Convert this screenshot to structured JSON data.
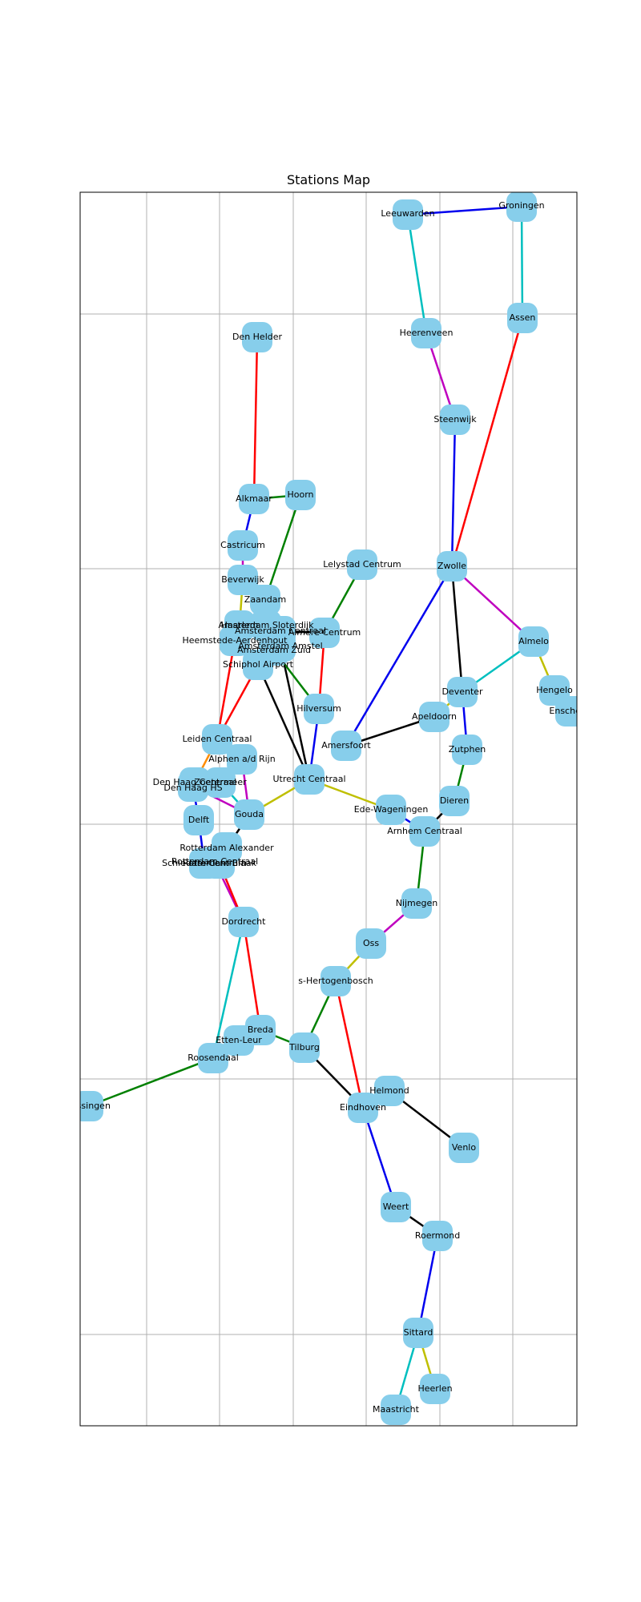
{
  "title": "Stations Map",
  "colors": {
    "node": "#87CEEB",
    "grid": "#b0b0b0"
  },
  "stations": [
    {
      "id": "Groningen",
      "label": "Groningen"
    },
    {
      "id": "Leeuwarden",
      "label": "Leeuwarden"
    },
    {
      "id": "Assen",
      "label": "Assen"
    },
    {
      "id": "Heerenveen",
      "label": "Heerenveen"
    },
    {
      "id": "Den Helder",
      "label": "Den Helder"
    },
    {
      "id": "Steenwijk",
      "label": "Steenwijk"
    },
    {
      "id": "Alkmaar",
      "label": "Alkmaar"
    },
    {
      "id": "Hoorn",
      "label": "Hoorn"
    },
    {
      "id": "Castricum",
      "label": "Castricum"
    },
    {
      "id": "Lelystad Centrum",
      "label": "Lelystad Centrum"
    },
    {
      "id": "Zwolle",
      "label": "Zwolle"
    },
    {
      "id": "Beverwijk",
      "label": "Beverwijk"
    },
    {
      "id": "Zaandam",
      "label": "Zaandam"
    },
    {
      "id": "Haarlem",
      "label": "Haarlem"
    },
    {
      "id": "Amsterdam Sloterdijk",
      "label": "Amsterdam Sloterdijk"
    },
    {
      "id": "Amsterdam Centraal",
      "label": "Amsterdam Centraal"
    },
    {
      "id": "Almere Centrum",
      "label": "Almere Centrum"
    },
    {
      "id": "Heemstede-Aerdenhout",
      "label": "Heemstede-Aerdenhout"
    },
    {
      "id": "Amsterdam Amstel",
      "label": "Amsterdam Amstel"
    },
    {
      "id": "Amsterdam Zuid",
      "label": "Amsterdam Zuid"
    },
    {
      "id": "Almelo",
      "label": "Almelo"
    },
    {
      "id": "Schiphol Airport",
      "label": "Schiphol Airport"
    },
    {
      "id": "Deventer",
      "label": "Deventer"
    },
    {
      "id": "Hengelo",
      "label": "Hengelo"
    },
    {
      "id": "Enschede",
      "label": "Enschede"
    },
    {
      "id": "Hilversum",
      "label": "Hilversum"
    },
    {
      "id": "Apeldoorn",
      "label": "Apeldoorn"
    },
    {
      "id": "Leiden Centraal",
      "label": "Leiden Centraal"
    },
    {
      "id": "Amersfoort",
      "label": "Amersfoort"
    },
    {
      "id": "Zutphen",
      "label": "Zutphen"
    },
    {
      "id": "Alphen a/d Rijn",
      "label": "Alphen a/d Rijn"
    },
    {
      "id": "Utrecht Centraal",
      "label": "Utrecht Centraal"
    },
    {
      "id": "Den Haag Centraal",
      "label": "Den Haag Centraal"
    },
    {
      "id": "Den Haag HS",
      "label": "Den Haag HS"
    },
    {
      "id": "Zoetermeer",
      "label": "Zoetermeer"
    },
    {
      "id": "Dieren",
      "label": "Dieren"
    },
    {
      "id": "Ede-Wageningen",
      "label": "Ede-Wageningen"
    },
    {
      "id": "Gouda",
      "label": "Gouda"
    },
    {
      "id": "Delft",
      "label": "Delft"
    },
    {
      "id": "Arnhem Centraal",
      "label": "Arnhem Centraal"
    },
    {
      "id": "Rotterdam Alexander",
      "label": "Rotterdam Alexander"
    },
    {
      "id": "Rotterdam Centraal",
      "label": "Rotterdam Centraal"
    },
    {
      "id": "Schiedam Centrum",
      "label": "Schiedam Centrum"
    },
    {
      "id": "Rotterdam Blaak",
      "label": "Rotterdam Blaak"
    },
    {
      "id": "Nijmegen",
      "label": "Nijmegen"
    },
    {
      "id": "Dordrecht",
      "label": "Dordrecht"
    },
    {
      "id": "Oss",
      "label": "Oss"
    },
    {
      "id": "s-Hertogenbosch",
      "label": "s-Hertogenbosch"
    },
    {
      "id": "Breda",
      "label": "Breda"
    },
    {
      "id": "Etten-Leur",
      "label": "Etten-Leur"
    },
    {
      "id": "Tilburg",
      "label": "Tilburg"
    },
    {
      "id": "Roosendaal",
      "label": "Roosendaal"
    },
    {
      "id": "Helmond",
      "label": "Helmond"
    },
    {
      "id": "Vlissingen",
      "label": "Vlissingen"
    },
    {
      "id": "Eindhoven",
      "label": "Eindhoven"
    },
    {
      "id": "Venlo",
      "label": "Venlo"
    },
    {
      "id": "Weert",
      "label": "Weert"
    },
    {
      "id": "Roermond",
      "label": "Roermond"
    },
    {
      "id": "Sittard",
      "label": "Sittard"
    },
    {
      "id": "Heerlen",
      "label": "Heerlen"
    },
    {
      "id": "Maastricht",
      "label": "Maastricht"
    }
  ],
  "connections": [
    {
      "from": "Leeuwarden",
      "to": "Groningen",
      "color": "#0000ee"
    },
    {
      "from": "Groningen",
      "to": "Assen",
      "color": "#00bfbf"
    },
    {
      "from": "Leeuwarden",
      "to": "Heerenveen",
      "color": "#00bfbf"
    },
    {
      "from": "Heerenveen",
      "to": "Steenwijk",
      "color": "#bf00bf"
    },
    {
      "from": "Steenwijk",
      "to": "Zwolle",
      "color": "#0000ee"
    },
    {
      "from": "Assen",
      "to": "Zwolle",
      "color": "#ff0000"
    },
    {
      "from": "Den Helder",
      "to": "Alkmaar",
      "color": "#ff0000"
    },
    {
      "from": "Alkmaar",
      "to": "Hoorn",
      "color": "#008000"
    },
    {
      "from": "Alkmaar",
      "to": "Castricum",
      "color": "#0000ee"
    },
    {
      "from": "Castricum",
      "to": "Beverwijk",
      "color": "#bf00bf"
    },
    {
      "from": "Beverwijk",
      "to": "Haarlem",
      "color": "#bfbf00"
    },
    {
      "from": "Hoorn",
      "to": "Zaandam",
      "color": "#008000"
    },
    {
      "from": "Zaandam",
      "to": "Amsterdam Sloterdijk",
      "color": "#0000ee"
    },
    {
      "from": "Haarlem",
      "to": "Amsterdam Sloterdijk",
      "color": "#ff0000"
    },
    {
      "from": "Amsterdam Sloterdijk",
      "to": "Amsterdam Centraal",
      "color": "#000000"
    },
    {
      "from": "Amsterdam Centraal",
      "to": "Almere Centrum",
      "color": "#000000"
    },
    {
      "from": "Lelystad Centrum",
      "to": "Almere Centrum",
      "color": "#008000"
    },
    {
      "from": "Almere Centrum",
      "to": "Hilversum",
      "color": "#ff0000"
    },
    {
      "from": "Amsterdam Centraal",
      "to": "Amsterdam Amstel",
      "color": "#000000"
    },
    {
      "from": "Amsterdam Amstel",
      "to": "Utrecht Centraal",
      "color": "#000000"
    },
    {
      "from": "Amsterdam Zuid",
      "to": "Hilversum",
      "color": "#008000"
    },
    {
      "from": "Schiphol Airport",
      "to": "Utrecht Centraal",
      "color": "#000000"
    },
    {
      "from": "Schiphol Airport",
      "to": "Leiden Centraal",
      "color": "#ff0000"
    },
    {
      "from": "Heemstede-Aerdenhout",
      "to": "Leiden Centraal",
      "color": "#ff0000"
    },
    {
      "from": "Hilversum",
      "to": "Utrecht Centraal",
      "color": "#0000ee"
    },
    {
      "from": "Zwolle",
      "to": "Almelo",
      "color": "#bf00bf"
    },
    {
      "from": "Zwolle",
      "to": "Deventer",
      "color": "#000000"
    },
    {
      "from": "Zwolle",
      "to": "Amersfoort",
      "color": "#0000ee"
    },
    {
      "from": "Almelo",
      "to": "Deventer",
      "color": "#00bfbf"
    },
    {
      "from": "Almelo",
      "to": "Hengelo",
      "color": "#bfbf00"
    },
    {
      "from": "Hengelo",
      "to": "Enschede",
      "color": "#bfbf00"
    },
    {
      "from": "Deventer",
      "to": "Apeldoorn",
      "color": "#bfbf00"
    },
    {
      "from": "Deventer",
      "to": "Zutphen",
      "color": "#0000ee"
    },
    {
      "from": "Zutphen",
      "to": "Dieren",
      "color": "#008000"
    },
    {
      "from": "Apeldoorn",
      "to": "Amersfoort",
      "color": "#000000"
    },
    {
      "from": "Dieren",
      "to": "Arnhem Centraal",
      "color": "#000000"
    },
    {
      "from": "Utrecht Centraal",
      "to": "Ede-Wageningen",
      "color": "#bfbf00"
    },
    {
      "from": "Ede-Wageningen",
      "to": "Arnhem Centraal",
      "color": "#0000ee"
    },
    {
      "from": "Arnhem Centraal",
      "to": "Nijmegen",
      "color": "#008000"
    },
    {
      "from": "Utrecht Centraal",
      "to": "Gouda",
      "color": "#bfbf00"
    },
    {
      "from": "Leiden Centraal",
      "to": "Den Haag Centraal",
      "color": "#ff8c00"
    },
    {
      "from": "Alphen a/d Rijn",
      "to": "Gouda",
      "color": "#bf00bf"
    },
    {
      "from": "Zoetermeer",
      "to": "Gouda",
      "color": "#00bfbf"
    },
    {
      "from": "Den Haag HS",
      "to": "Gouda",
      "color": "#bf00bf"
    },
    {
      "from": "Den Haag HS",
      "to": "Delft",
      "color": "#0000ee"
    },
    {
      "from": "Delft",
      "to": "Schiedam Centrum",
      "color": "#0000ee"
    },
    {
      "from": "Gouda",
      "to": "Rotterdam Alexander",
      "color": "#000000"
    },
    {
      "from": "Rotterdam Alexander",
      "to": "Rotterdam Centraal",
      "color": "#000000"
    },
    {
      "from": "Rotterdam Centraal",
      "to": "Dordrecht",
      "color": "#bf00bf"
    },
    {
      "from": "Rotterdam Blaak",
      "to": "Dordrecht",
      "color": "#ff0000"
    },
    {
      "from": "Dordrecht",
      "to": "Breda",
      "color": "#ff0000"
    },
    {
      "from": "Dordrecht",
      "to": "Roosendaal",
      "color": "#00bfbf"
    },
    {
      "from": "Breda",
      "to": "Tilburg",
      "color": "#008000"
    },
    {
      "from": "Etten-Leur",
      "to": "Roosendaal",
      "color": "#008000"
    },
    {
      "from": "Roosendaal",
      "to": "Vlissingen",
      "color": "#008000"
    },
    {
      "from": "Nijmegen",
      "to": "Oss",
      "color": "#bf00bf"
    },
    {
      "from": "Oss",
      "to": "s-Hertogenbosch",
      "color": "#bfbf00"
    },
    {
      "from": "s-Hertogenbosch",
      "to": "Tilburg",
      "color": "#008000"
    },
    {
      "from": "s-Hertogenbosch",
      "to": "Eindhoven",
      "color": "#ff0000"
    },
    {
      "from": "Tilburg",
      "to": "Eindhoven",
      "color": "#000000"
    },
    {
      "from": "Eindhoven",
      "to": "Helmond",
      "color": "#000000"
    },
    {
      "from": "Helmond",
      "to": "Venlo",
      "color": "#000000"
    },
    {
      "from": "Eindhoven",
      "to": "Weert",
      "color": "#0000ee"
    },
    {
      "from": "Weert",
      "to": "Roermond",
      "color": "#000000"
    },
    {
      "from": "Roermond",
      "to": "Sittard",
      "color": "#0000ee"
    },
    {
      "from": "Sittard",
      "to": "Heerlen",
      "color": "#bfbf00"
    },
    {
      "from": "Sittard",
      "to": "Maastricht",
      "color": "#00bfbf"
    }
  ]
}
